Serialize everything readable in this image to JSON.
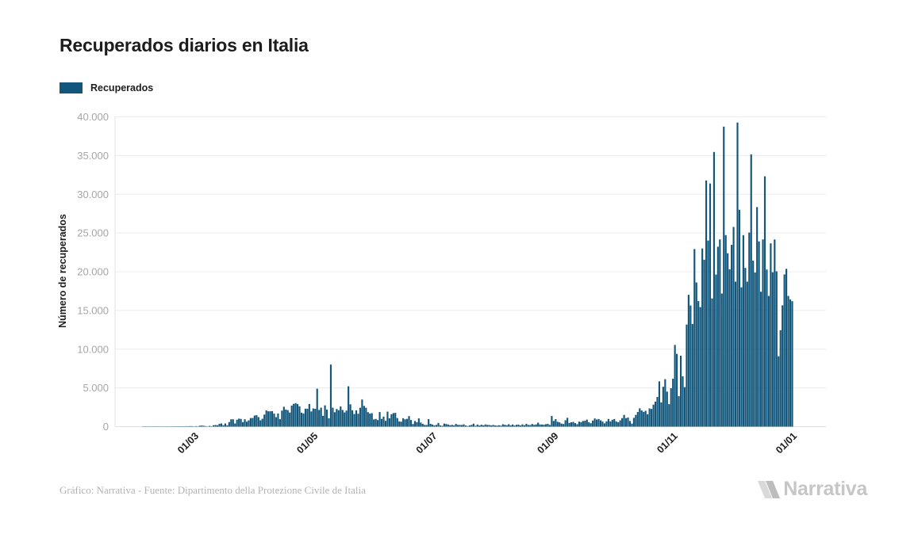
{
  "header": {
    "title": "Recuperados diarios en Italia"
  },
  "legend": {
    "label": "Recuperados"
  },
  "y_axis": {
    "label": "Número de recuperados"
  },
  "footer": {
    "caption": "Gráfico: Narrativa - Fuente: Dipartimento della Protezione Civile de Italia",
    "brand": "Narrativa"
  },
  "chart_data": {
    "type": "bar",
    "title": "Recuperados diarios en Italia",
    "series_name": "Recuperados",
    "xlabel": "",
    "ylabel": "Número de recuperados",
    "ylim": [
      0,
      40000
    ],
    "grid": true,
    "legend_position": "top-left",
    "y_tick_interval": 5000,
    "y_tick_labels": [
      "0",
      "5.000",
      "10.000",
      "15.000",
      "20.000",
      "25.000",
      "30.000",
      "35.000",
      "40.000"
    ],
    "x_tick_labels": [
      "01/03",
      "01/05",
      "01/07",
      "01/09",
      "01/11",
      "01/01"
    ],
    "x_tick_day_index": [
      25,
      86,
      147,
      209,
      270,
      331
    ],
    "start_date_label": "05/02",
    "end_date_label": "02/01",
    "colors": {
      "bar": "#12567b",
      "grid": "#ececec",
      "axis": "#e0e0e0",
      "tick_label": "#a6a6a6",
      "text": "#1d1d1d",
      "caption": "#b3b3b3",
      "brand": "#c6c6c6",
      "brand_icon_light": "#d9d9d9",
      "brand_icon_dark": "#bdbdbd",
      "background": "#ffffff"
    },
    "values": [
      1,
      2,
      18,
      28,
      32,
      21,
      26,
      38,
      31,
      26,
      22,
      32,
      42,
      36,
      30,
      44,
      36,
      52,
      45,
      46,
      50,
      45,
      62,
      48,
      76,
      60,
      33,
      66,
      11,
      116,
      138,
      109,
      66,
      33,
      102,
      41,
      181,
      213,
      181,
      369,
      414,
      192,
      415,
      181,
      590,
      943,
      952,
      408,
      894,
      1036,
      999,
      589,
      952,
      646,
      819,
      1109,
      1118,
      1431,
      1480,
      1238,
      819,
      1022,
      1555,
      2099,
      1979,
      1985,
      1996,
      1677,
      1224,
      1695,
      962,
      2072,
      2563,
      2200,
      2128,
      1822,
      2723,
      2943,
      3033,
      2922,
      2622,
      1808,
      1696,
      2317,
      2311,
      2930,
      1965,
      2352,
      2304,
      4900,
      2155,
      2452,
      1401,
      2747,
      2200,
      1083,
      8014,
      2452,
      1862,
      2278,
      2120,
      2605,
      2159,
      1836,
      2075,
      5214,
      2881,
      2120,
      1639,
      2105,
      1666,
      2436,
      3503,
      2677,
      2443,
      1874,
      1683,
      1737,
      929,
      1002,
      846,
      1886,
      1001,
      1297,
      747,
      1939,
      1075,
      1604,
      1747,
      1780,
      1111,
      669,
      640,
      1089,
      944,
      1006,
      1363,
      853,
      338,
      729,
      577,
      1064,
      533,
      366,
      225,
      217,
      967,
      366,
      275,
      164,
      223,
      477,
      155,
      114,
      396,
      338,
      276,
      188,
      234,
      163,
      352,
      230,
      229,
      213,
      305,
      147,
      80,
      170,
      230,
      381,
      109,
      275,
      147,
      254,
      170,
      288,
      223,
      217,
      157,
      224,
      159,
      134,
      183,
      129,
      305,
      240,
      182,
      316,
      168,
      278,
      142,
      245,
      269,
      154,
      293,
      182,
      364,
      223,
      209,
      341,
      230,
      291,
      517,
      284,
      274,
      244,
      318,
      360,
      221,
      1376,
      738,
      975,
      625,
      552,
      393,
      336,
      826,
      1140,
      488,
      561,
      616,
      459,
      316,
      642,
      587,
      734,
      759,
      912,
      565,
      438,
      786,
      1058,
      917,
      985,
      818,
      658,
      423,
      678,
      995,
      677,
      891,
      986,
      669,
      568,
      816,
      1099,
      1514,
      1099,
      1186,
      725,
      395,
      1132,
      1517,
      1899,
      2369,
      2086,
      1908,
      2046,
      1601,
      2352,
      2280,
      2838,
      3240,
      3830,
      5850,
      3130,
      5150,
      6130,
      4520,
      2901,
      4961,
      6183,
      10550,
      9400,
      3930,
      9160,
      6504,
      5103,
      13180,
      17020,
      15645,
      13252,
      22930,
      18615,
      16206,
      15434,
      23004,
      21554,
      31782,
      24031,
      31395,
      16556,
      35467,
      19638,
      23232,
      24169,
      17186,
      38740,
      24728,
      22386,
      20315,
      23474,
      25786,
      18720,
      39266,
      28002,
      17990,
      24728,
      20494,
      18720,
      25060,
      35154,
      21430,
      19903,
      28352,
      23923,
      17421,
      24169,
      32324,
      20281,
      16877,
      23666,
      19935,
      24169,
      20058,
      9089,
      12456,
      15659,
      19655,
      20376,
      16877,
      16430,
      16202
    ]
  }
}
